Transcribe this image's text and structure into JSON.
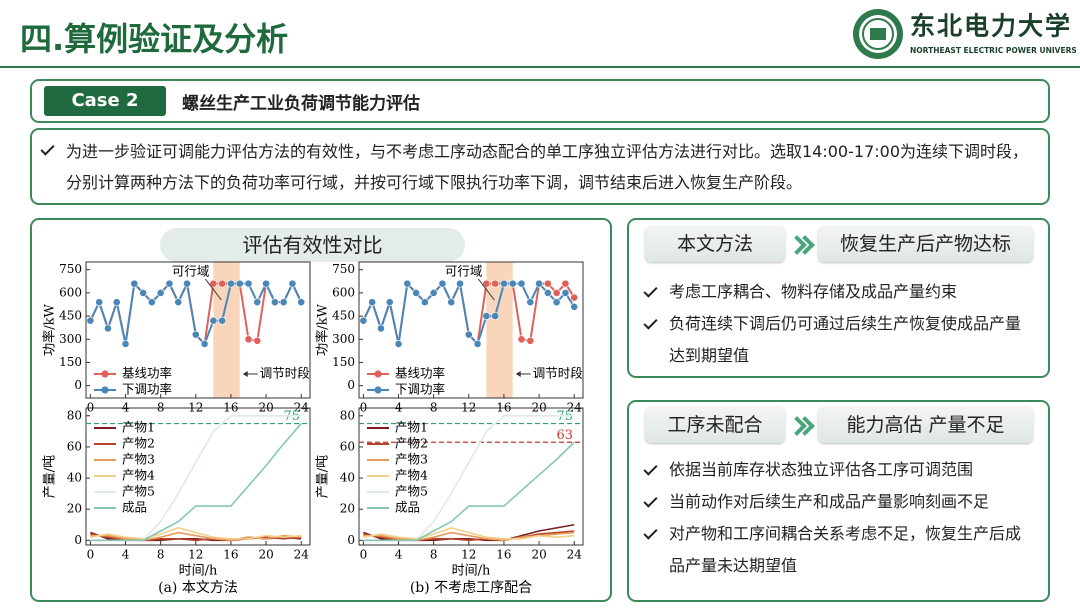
{
  "header": {
    "title": "四.算例验证及分析",
    "logo_name": "东北电力大学",
    "logo_subtitle": "NORTHEAST ELECTRIC POWER UNIVERSITY"
  },
  "case": {
    "label": "Case 2",
    "title": "螺丝生产工业负荷调节能力评估"
  },
  "intro": "为进一步验证可调能力评估方法的有效性，与不考虑工序动态配合的单工序独立评估方法进行对比。选取14:00-17:00为连续下调时段，分别计算两种方法下的负荷功率可行域，并按可行域下限执行功率下调，调节结束后进入恢复生产阶段。",
  "comparison": {
    "title": "评估有效性对比"
  },
  "chart_data": [
    {
      "type": "line",
      "ylabel": "功率/kW",
      "markers": true,
      "legend": "lower left",
      "x": [
        0,
        1,
        2,
        3,
        4,
        5,
        6,
        7,
        8,
        9,
        10,
        11,
        12,
        13,
        14,
        15,
        16,
        17,
        18,
        19,
        20,
        21,
        22,
        23,
        24
      ],
      "series": [
        {
          "name": "基线功率",
          "color": "#e0605a",
          "values": [
            420,
            540,
            370,
            540,
            270,
            660,
            600,
            540,
            600,
            660,
            540,
            660,
            330,
            270,
            660,
            660,
            660,
            660,
            300,
            290,
            660,
            540,
            540,
            660,
            540
          ]
        },
        {
          "name": "下调功率",
          "color": "#4a86b8",
          "values": [
            420,
            540,
            370,
            540,
            270,
            660,
            600,
            540,
            600,
            660,
            540,
            660,
            330,
            270,
            420,
            420,
            660,
            660,
            660,
            540,
            660,
            540,
            540,
            660,
            540
          ]
        }
      ],
      "shade": [
        14,
        17
      ],
      "annotations": [
        {
          "text": "可行域"
        },
        {
          "text": "调节时段"
        }
      ],
      "xlim": [
        -0.5,
        25
      ],
      "xticks": [
        0,
        4,
        8,
        12,
        16,
        20,
        24
      ],
      "ylim": [
        -80,
        800
      ],
      "yticks": [
        0,
        150,
        300,
        450,
        600,
        750
      ]
    },
    {
      "type": "line",
      "ylabel": "产量/吨",
      "xlabel": "时间/h",
      "caption": "(a) 本文方法",
      "markers": false,
      "legend": "upper left",
      "x": [
        0,
        2,
        4,
        6,
        8,
        10,
        12,
        14,
        16,
        18,
        20,
        22,
        24
      ],
      "series": [
        {
          "name": "产物1",
          "color": "#7b1e1e",
          "values": [
            5,
            1,
            1,
            0,
            0,
            1,
            1,
            0,
            0,
            2,
            1,
            2,
            1
          ]
        },
        {
          "name": "产物2",
          "color": "#b8442a",
          "values": [
            4,
            2,
            0,
            0,
            1,
            1,
            0,
            1,
            0,
            1,
            2,
            1,
            2
          ]
        },
        {
          "name": "产物3",
          "color": "#e79a5a",
          "values": [
            3,
            3,
            1,
            0,
            2,
            5,
            3,
            1,
            0,
            2,
            1,
            3,
            2
          ]
        },
        {
          "name": "产物4",
          "color": "#f3cf8a",
          "values": [
            2,
            4,
            2,
            1,
            4,
            8,
            5,
            2,
            1,
            1,
            3,
            2,
            3
          ]
        },
        {
          "name": "产物5",
          "color": "#dcebe8",
          "values": [
            0,
            0,
            0,
            0,
            12,
            30,
            50,
            70,
            80,
            80,
            80,
            80,
            80
          ]
        },
        {
          "name": "成品",
          "color": "#86c7b4",
          "values": [
            0,
            0,
            0,
            0,
            6,
            12,
            22,
            22,
            22,
            35,
            48,
            62,
            75
          ]
        }
      ],
      "reference_lines": [
        {
          "value": 75,
          "color": "#2e9e6e"
        }
      ],
      "xlim": [
        -0.5,
        25
      ],
      "xticks": [
        0,
        4,
        8,
        12,
        16,
        20,
        24
      ],
      "ylim": [
        -3,
        85
      ],
      "yticks": [
        0,
        20,
        40,
        60,
        80
      ]
    },
    {
      "type": "line",
      "ylabel": "功率/kW",
      "markers": true,
      "legend": "lower left",
      "x": [
        0,
        1,
        2,
        3,
        4,
        5,
        6,
        7,
        8,
        9,
        10,
        11,
        12,
        13,
        14,
        15,
        16,
        17,
        18,
        19,
        20,
        21,
        22,
        23,
        24
      ],
      "series": [
        {
          "name": "基线功率",
          "color": "#e0605a",
          "values": [
            420,
            540,
            370,
            540,
            270,
            660,
            600,
            540,
            600,
            660,
            540,
            660,
            330,
            270,
            660,
            660,
            660,
            660,
            300,
            290,
            660,
            660,
            600,
            660,
            570
          ]
        },
        {
          "name": "下调功率",
          "color": "#4a86b8",
          "values": [
            420,
            540,
            370,
            540,
            270,
            660,
            600,
            540,
            600,
            660,
            540,
            660,
            330,
            270,
            450,
            450,
            660,
            660,
            660,
            540,
            660,
            600,
            540,
            600,
            510
          ]
        }
      ],
      "shade": [
        14,
        17
      ],
      "annotations": [
        {
          "text": "可行域"
        },
        {
          "text": "调节时段"
        }
      ],
      "xlim": [
        -0.5,
        25
      ],
      "xticks": [
        0,
        4,
        8,
        12,
        16,
        20,
        24
      ],
      "ylim": [
        -80,
        800
      ],
      "yticks": [
        0,
        150,
        300,
        450,
        600,
        750
      ]
    },
    {
      "type": "line",
      "ylabel": "产量/吨",
      "xlabel": "时间/h",
      "caption": "(b) 不考虑工序配合",
      "markers": false,
      "legend": "upper left",
      "x": [
        0,
        2,
        4,
        6,
        8,
        10,
        12,
        14,
        16,
        18,
        20,
        22,
        24
      ],
      "series": [
        {
          "name": "产物1",
          "color": "#7b1e1e",
          "values": [
            5,
            1,
            1,
            0,
            0,
            1,
            1,
            0,
            0,
            3,
            6,
            8,
            10
          ]
        },
        {
          "name": "产物2",
          "color": "#b8442a",
          "values": [
            4,
            2,
            0,
            0,
            1,
            1,
            0,
            1,
            0,
            2,
            4,
            5,
            6
          ]
        },
        {
          "name": "产物3",
          "color": "#e79a5a",
          "values": [
            3,
            3,
            1,
            0,
            2,
            5,
            3,
            1,
            0,
            2,
            3,
            4,
            5
          ]
        },
        {
          "name": "产物4",
          "color": "#f3cf8a",
          "values": [
            2,
            4,
            2,
            1,
            4,
            8,
            5,
            2,
            1,
            1,
            3,
            2,
            3
          ]
        },
        {
          "name": "产物5",
          "color": "#dcebe8",
          "values": [
            0,
            0,
            0,
            0,
            12,
            30,
            50,
            70,
            80,
            80,
            80,
            80,
            80
          ]
        },
        {
          "name": "成品",
          "color": "#86c7b4",
          "values": [
            0,
            0,
            0,
            0,
            6,
            12,
            22,
            22,
            22,
            32,
            42,
            52,
            63
          ]
        }
      ],
      "reference_lines": [
        {
          "value": 75,
          "color": "#2e9e6e"
        },
        {
          "value": 63,
          "color": "#c0392b"
        }
      ],
      "xlim": [
        -0.5,
        25
      ],
      "xticks": [
        0,
        4,
        8,
        12,
        16,
        20,
        24
      ],
      "ylim": [
        -3,
        85
      ],
      "yticks": [
        0,
        20,
        40,
        60,
        80
      ]
    }
  ],
  "methods": [
    {
      "name": "本文方法",
      "result": "恢复生产后产物达标",
      "points": [
        "考虑工序耦合、物料存储及成品产量约束",
        "负荷连续下调后仍可通过后续生产恢复使成品产量达到期望值"
      ]
    },
    {
      "name": "工序未配合",
      "result": "能力高估 产量不足",
      "points": [
        "依据当前库存状态独立评估各工序可调范围",
        "当前动作对后续生产和成品产量影响刻画不足",
        "对产物和工序间耦合关系考虑不足，恢复生产后成品产量未达期望值"
      ]
    }
  ]
}
